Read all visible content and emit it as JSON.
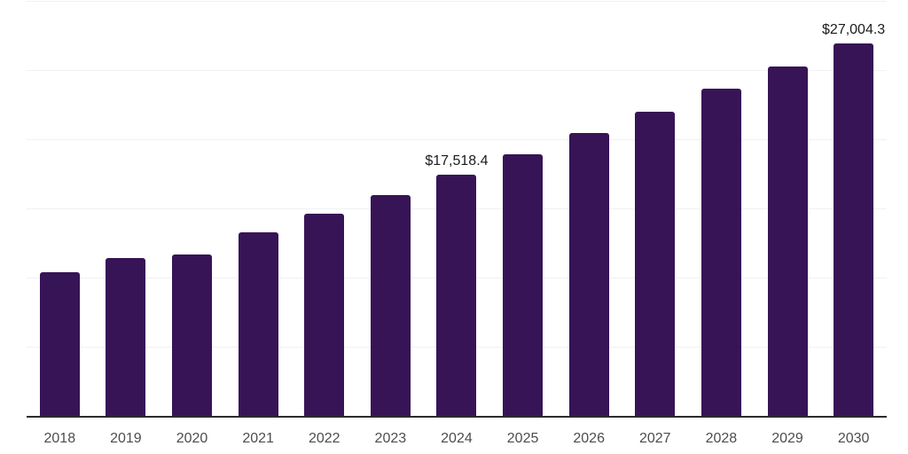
{
  "chart_data": {
    "type": "bar",
    "title": "",
    "xlabel": "",
    "ylabel": "",
    "categories": [
      "2018",
      "2019",
      "2020",
      "2021",
      "2022",
      "2023",
      "2024",
      "2025",
      "2026",
      "2027",
      "2028",
      "2029",
      "2030"
    ],
    "values": [
      10450,
      11450,
      11700,
      13320,
      14700,
      16040,
      17518.4,
      18980,
      20490,
      22070,
      23690,
      25350,
      27004.3
    ],
    "data_labels": [
      "",
      "",
      "",
      "",
      "",
      "",
      "$17,518.4",
      "",
      "",
      "",
      "",
      "",
      "$27,004.3"
    ],
    "ylim": [
      0,
      30000
    ],
    "gridline_step": 5000,
    "grid": true,
    "y_axis_ticks_visible": false,
    "legend": "none"
  },
  "colors": {
    "bar": "#371456",
    "axis_line": "#2b2b2b",
    "gridline": "#f1f1f4",
    "tick_label": "#4d4d4d",
    "data_label": "#1c1c1c",
    "background": "#ffffff"
  }
}
